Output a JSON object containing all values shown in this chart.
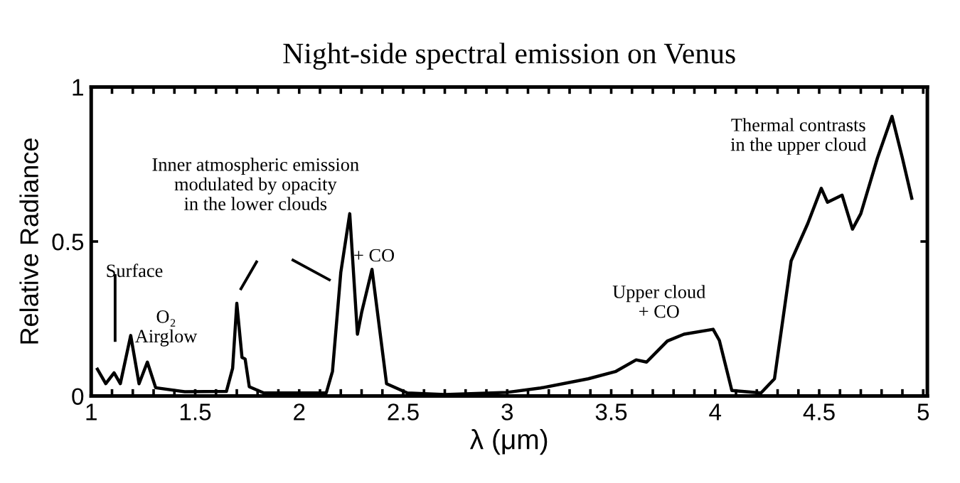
{
  "chart_data": {
    "type": "line",
    "title": "Night-side spectral emission on Venus",
    "xlabel": "λ (μm)",
    "ylabel": "Relative Radiance",
    "series": [
      {
        "color": "#000000",
        "x": [
          1.03,
          1.07,
          1.11,
          1.14,
          1.19,
          1.23,
          1.27,
          1.31,
          1.45,
          1.65,
          1.68,
          1.7,
          1.725,
          1.74,
          1.76,
          1.83,
          2.13,
          2.16,
          2.2,
          2.243,
          2.28,
          2.3,
          2.35,
          2.42,
          2.52,
          2.7,
          3.0,
          3.16,
          3.39,
          3.52,
          3.62,
          3.67,
          3.77,
          3.85,
          3.99,
          4.02,
          4.08,
          4.22,
          4.285,
          4.33,
          4.365,
          4.445,
          4.51,
          4.54,
          4.61,
          4.66,
          4.7,
          4.78,
          4.85,
          4.9,
          4.945
        ],
        "values": [
          0.087,
          0.04,
          0.075,
          0.04,
          0.196,
          0.04,
          0.11,
          0.027,
          0.014,
          0.015,
          0.09,
          0.3,
          0.125,
          0.12,
          0.03,
          0.01,
          0.01,
          0.08,
          0.4,
          0.59,
          0.2,
          0.27,
          0.41,
          0.04,
          0.01,
          0.005,
          0.012,
          0.026,
          0.056,
          0.079,
          0.117,
          0.11,
          0.178,
          0.2,
          0.216,
          0.18,
          0.018,
          0.01,
          0.056,
          0.27,
          0.437,
          0.558,
          0.672,
          0.627,
          0.65,
          0.54,
          0.59,
          0.77,
          0.905,
          0.77,
          0.64
        ]
      }
    ],
    "xlim": [
      1,
      5.02
    ],
    "ylim": [
      0,
      1
    ],
    "xticks": [
      1,
      {
        "value": 1.1,
        "label": null
      },
      {
        "value": 1.2,
        "label": null
      },
      {
        "value": 1.3,
        "label": null
      },
      {
        "value": 1.4,
        "label": null
      },
      1.5,
      {
        "value": 1.6,
        "label": null
      },
      {
        "value": 1.7,
        "label": null
      },
      {
        "value": 1.8,
        "label": null
      },
      {
        "value": 1.9,
        "label": null
      },
      2,
      {
        "value": 2.1,
        "label": null
      },
      {
        "value": 2.2,
        "label": null
      },
      {
        "value": 2.3,
        "label": null
      },
      {
        "value": 2.4,
        "label": null
      },
      2.5,
      {
        "value": 2.6,
        "label": null
      },
      {
        "value": 2.7,
        "label": null
      },
      {
        "value": 2.8,
        "label": null
      },
      {
        "value": 2.9,
        "label": null
      },
      3,
      {
        "value": 3.1,
        "label": null
      },
      {
        "value": 3.2,
        "label": null
      },
      {
        "value": 3.3,
        "label": null
      },
      {
        "value": 3.4,
        "label": null
      },
      3.5,
      {
        "value": 3.6,
        "label": null
      },
      {
        "value": 3.7,
        "label": null
      },
      {
        "value": 3.8,
        "label": null
      },
      {
        "value": 3.9,
        "label": null
      },
      4,
      {
        "value": 4.1,
        "label": null
      },
      {
        "value": 4.2,
        "label": null
      },
      {
        "value": 4.3,
        "label": null
      },
      {
        "value": 4.4,
        "label": null
      },
      4.5,
      {
        "value": 4.6,
        "label": null
      },
      {
        "value": 4.7,
        "label": null
      },
      {
        "value": 4.8,
        "label": null
      },
      {
        "value": 4.9,
        "label": null
      },
      5
    ],
    "yticks": [
      0,
      0.5,
      1
    ],
    "annotations": [
      "Surface",
      "O₂\nAirglow",
      "Inner atmospheric emission\nmodulated by opacity\nin the lower clouds",
      "+ CO",
      "Upper cloud\n+ CO",
      "Thermal contrasts\nin the upper cloud"
    ],
    "grid": false,
    "legend": false,
    "marker": "none",
    "line_style": "solid"
  }
}
